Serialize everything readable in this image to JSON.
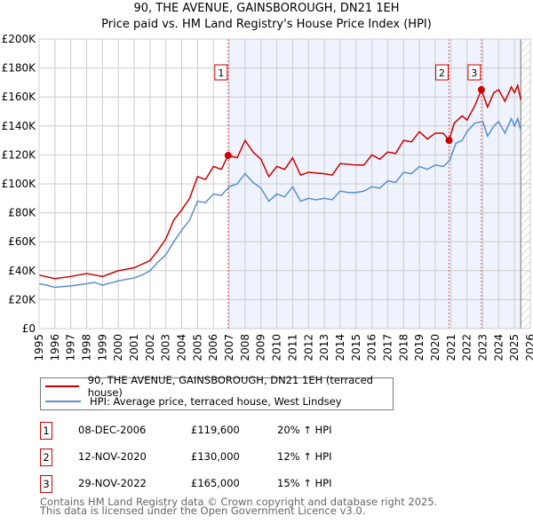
{
  "chart_data": {
    "type": "line",
    "title": "90, THE AVENUE, GAINSBOROUGH, DN21 1EH",
    "subtitle": "Price paid vs. HM Land Registry's House Price Index (HPI)",
    "xlim": [
      1995,
      2026
    ],
    "ylim": [
      0,
      200000
    ],
    "y_ticks": [
      "£0",
      "£20K",
      "£40K",
      "£60K",
      "£80K",
      "£100K",
      "£120K",
      "£140K",
      "£160K",
      "£180K",
      "£200K"
    ],
    "x_ticks": [
      "1995",
      "1996",
      "1997",
      "1998",
      "1999",
      "2000",
      "2001",
      "2002",
      "2003",
      "2004",
      "2005",
      "2006",
      "2007",
      "2008",
      "2009",
      "2010",
      "2011",
      "2012",
      "2013",
      "2014",
      "2015",
      "2016",
      "2017",
      "2018",
      "2019",
      "2020",
      "2021",
      "2022",
      "2023",
      "2024",
      "2025",
      "2026"
    ],
    "grid": true,
    "series": [
      {
        "name": "90, THE AVENUE, GAINSBOROUGH, DN21 1EH (terraced house)",
        "color": "#cc0000",
        "x": [
          1995,
          1996,
          1997,
          1998,
          1999,
          2000,
          2001,
          2002,
          2002.5,
          2003,
          2003.5,
          2004,
          2004.5,
          2005,
          2005.5,
          2006,
          2006.5,
          2006.93,
          2007.5,
          2008,
          2008.5,
          2009,
          2009.5,
          2010,
          2010.5,
          2011,
          2011.5,
          2012,
          2013,
          2013.5,
          2014,
          2015,
          2015.5,
          2016,
          2016.5,
          2017,
          2017.5,
          2018,
          2018.5,
          2019,
          2019.5,
          2020,
          2020.5,
          2020.87,
          2021.2,
          2021.7,
          2022,
          2022.5,
          2022.91,
          2023.3,
          2023.7,
          2024,
          2024.4,
          2024.8,
          2025,
          2025.2,
          2025.4
        ],
        "y": [
          37000,
          34500,
          36000,
          38000,
          36000,
          40000,
          42000,
          47000,
          54000,
          62000,
          75000,
          82000,
          90000,
          105000,
          103000,
          112000,
          110000,
          119600,
          118000,
          130000,
          122000,
          117000,
          105000,
          112000,
          110000,
          118000,
          106000,
          108000,
          107000,
          106000,
          114000,
          113000,
          113000,
          120000,
          117000,
          122000,
          121000,
          130000,
          129000,
          136000,
          131000,
          135000,
          135000,
          130000,
          142000,
          147000,
          144000,
          154000,
          165000,
          153000,
          163000,
          165000,
          157000,
          167000,
          163000,
          168000,
          158000
        ]
      },
      {
        "name": "HPI: Average price, terraced house, West Lindsey",
        "color": "#5b8fd0",
        "x": [
          1995,
          1995.5,
          1996,
          1997,
          1998,
          1998.5,
          1999,
          2000,
          2001,
          2001.5,
          2002,
          2002.5,
          2003,
          2003.5,
          2004,
          2004.5,
          2005,
          2005.5,
          2006,
          2006.5,
          2007,
          2007.5,
          2008,
          2008.5,
          2009,
          2009.5,
          2010,
          2010.5,
          2011,
          2011.5,
          2012,
          2012.5,
          2013,
          2013.5,
          2014,
          2014.5,
          2015,
          2015.5,
          2016,
          2016.5,
          2017,
          2017.5,
          2018,
          2018.5,
          2019,
          2019.5,
          2020,
          2020.5,
          2020.9,
          2021.3,
          2021.7,
          2022,
          2022.5,
          2023,
          2023.3,
          2023.7,
          2024,
          2024.4,
          2024.8,
          2025,
          2025.2,
          2025.4
        ],
        "y": [
          31000,
          30000,
          28500,
          29500,
          31000,
          32000,
          30000,
          33000,
          35000,
          37000,
          40000,
          46000,
          51000,
          60000,
          68000,
          75000,
          88000,
          87000,
          93000,
          92000,
          98000,
          100000,
          107000,
          101000,
          97000,
          88000,
          93000,
          91000,
          98000,
          88000,
          90000,
          89000,
          90000,
          89000,
          95000,
          94000,
          94000,
          95000,
          98000,
          97000,
          102000,
          101000,
          108000,
          107000,
          112000,
          110000,
          113000,
          112000,
          116000,
          128000,
          130000,
          136000,
          142000,
          143000,
          133000,
          140000,
          143000,
          135000,
          145000,
          140000,
          145000,
          137000
        ]
      }
    ],
    "sales": [
      {
        "label": "1",
        "x": 2006.93,
        "y": 119600
      },
      {
        "label": "2",
        "x": 2020.87,
        "y": 130000
      },
      {
        "label": "3",
        "x": 2022.91,
        "y": 165000
      }
    ],
    "forecast_start": 2025.4
  },
  "legend": {
    "item1": "90, THE AVENUE, GAINSBOROUGH, DN21 1EH (terraced house)",
    "item2": "HPI: Average price, terraced house, West Lindsey"
  },
  "transactions": [
    {
      "num": "1",
      "date": "08-DEC-2006",
      "price": "£119,600",
      "hpi": "20% ↑ HPI"
    },
    {
      "num": "2",
      "date": "12-NOV-2020",
      "price": "£130,000",
      "hpi": "12% ↑ HPI"
    },
    {
      "num": "3",
      "date": "29-NOV-2022",
      "price": "£165,000",
      "hpi": "15% ↑ HPI"
    }
  ],
  "footer": {
    "line1": "Contains HM Land Registry data © Crown copyright and database right 2025.",
    "line2": "This data is licensed under the Open Government Licence v3.0."
  }
}
